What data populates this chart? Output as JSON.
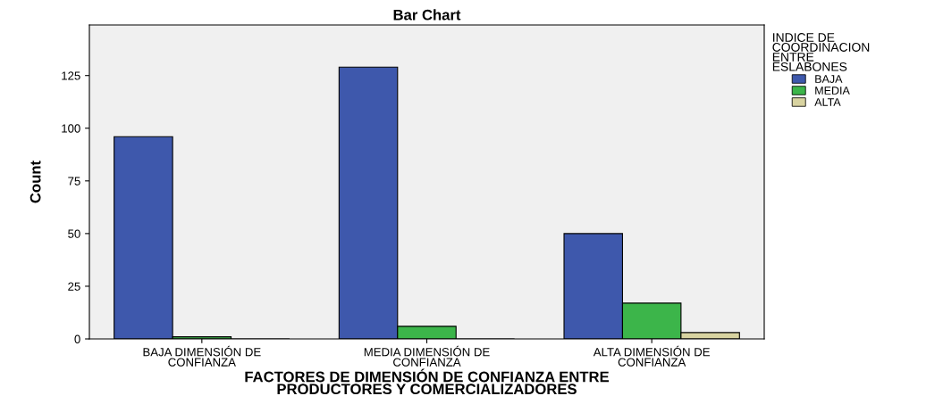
{
  "chart_data": {
    "type": "bar",
    "title": "Bar Chart",
    "xlabel": "FACTORES DE DIMENSIÓN DE CONFIANZA ENTRE\nPRODUCTORES Y COMERCIALIZADORES",
    "ylabel": "Count",
    "legend_title": "INDICE DE\nCOORDINACION\nENTRE\nESLABONES",
    "categories": [
      "BAJA DIMENSIÓN DE\nCONFIANZA",
      "MEDIA DIMENSIÓN DE\nCONFIANZA",
      "ALTA DIMENSIÓN DE\nCONFIANZA"
    ],
    "series": [
      {
        "name": "BAJA",
        "color": "#3e58ac",
        "values": [
          96,
          129,
          50
        ]
      },
      {
        "name": "MEDIA",
        "color": "#3cb54a",
        "values": [
          1,
          6,
          17
        ]
      },
      {
        "name": "ALTA",
        "color": "#d8d3a0",
        "values": [
          0,
          0,
          3
        ]
      }
    ],
    "ylim": [
      0,
      149
    ],
    "yticks": [
      0,
      25,
      50,
      75,
      100,
      125
    ],
    "grid": false,
    "legend": "right"
  }
}
